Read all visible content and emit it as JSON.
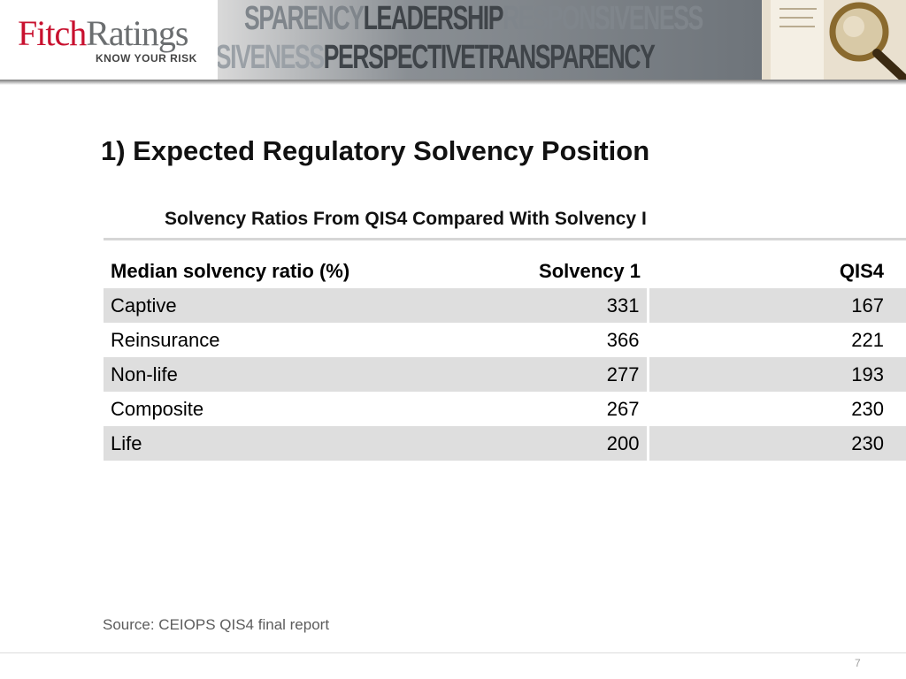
{
  "brand": {
    "name_part1": "Fitch",
    "name_part2": "Ratings",
    "tagline": "KNOW YOUR RISK",
    "banner_line1a": "SPARENCY",
    "banner_line1b": "LEADERSHIP",
    "banner_line1c": "RESPONSIVENESS",
    "banner_line2a": "NSIVENESS",
    "banner_line2b": "PERSPECTIVE",
    "banner_line2c": "TRANSPARENCY",
    "colors": {
      "accent": "#c8102e",
      "gray": "#6b6e70"
    }
  },
  "slide": {
    "title": "1) Expected Regulatory Solvency Position",
    "table_title": "Solvency Ratios From QIS4 Compared With Solvency I",
    "columns": [
      "Median solvency ratio (%)",
      "Solvency 1",
      "QIS4"
    ],
    "rows": [
      {
        "label": "Captive",
        "solvency1": "331",
        "qis4": "167"
      },
      {
        "label": "Reinsurance",
        "solvency1": "366",
        "qis4": "221"
      },
      {
        "label": "Non-life",
        "solvency1": "277",
        "qis4": "193"
      },
      {
        "label": "Composite",
        "solvency1": "267",
        "qis4": "230"
      },
      {
        "label": "Life",
        "solvency1": "200",
        "qis4": "230"
      }
    ],
    "source": "Source: CEIOPS QIS4 final report",
    "page_number": "7"
  }
}
